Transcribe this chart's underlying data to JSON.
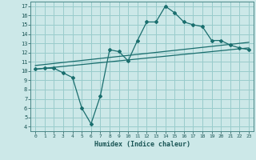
{
  "xlabel": "Humidex (Indice chaleur)",
  "bg_color": "#cce8e8",
  "grid_color": "#99cccc",
  "line_color": "#1a6e6e",
  "xlim": [
    -0.5,
    23.5
  ],
  "ylim": [
    3.5,
    17.5
  ],
  "xticks": [
    0,
    1,
    2,
    3,
    4,
    5,
    6,
    7,
    8,
    9,
    10,
    11,
    12,
    13,
    14,
    15,
    16,
    17,
    18,
    19,
    20,
    21,
    22,
    23
  ],
  "yticks": [
    4,
    5,
    6,
    7,
    8,
    9,
    10,
    11,
    12,
    13,
    14,
    15,
    16,
    17
  ],
  "line1_x": [
    0,
    1,
    2,
    3,
    4,
    5,
    6,
    7,
    8,
    9,
    10,
    11,
    12,
    13,
    14,
    15,
    16,
    17,
    18,
    19,
    20,
    21,
    22,
    23
  ],
  "line1_y": [
    10.2,
    10.3,
    10.3,
    9.8,
    9.3,
    6.0,
    4.3,
    7.3,
    12.3,
    12.1,
    11.1,
    13.3,
    15.3,
    15.3,
    17.0,
    16.3,
    15.3,
    15.0,
    14.8,
    13.3,
    13.3,
    12.8,
    12.5,
    12.3
  ],
  "line2_x": [
    0,
    23
  ],
  "line2_y": [
    10.2,
    12.5
  ],
  "line3_x": [
    0,
    23
  ],
  "line3_y": [
    10.6,
    13.1
  ]
}
